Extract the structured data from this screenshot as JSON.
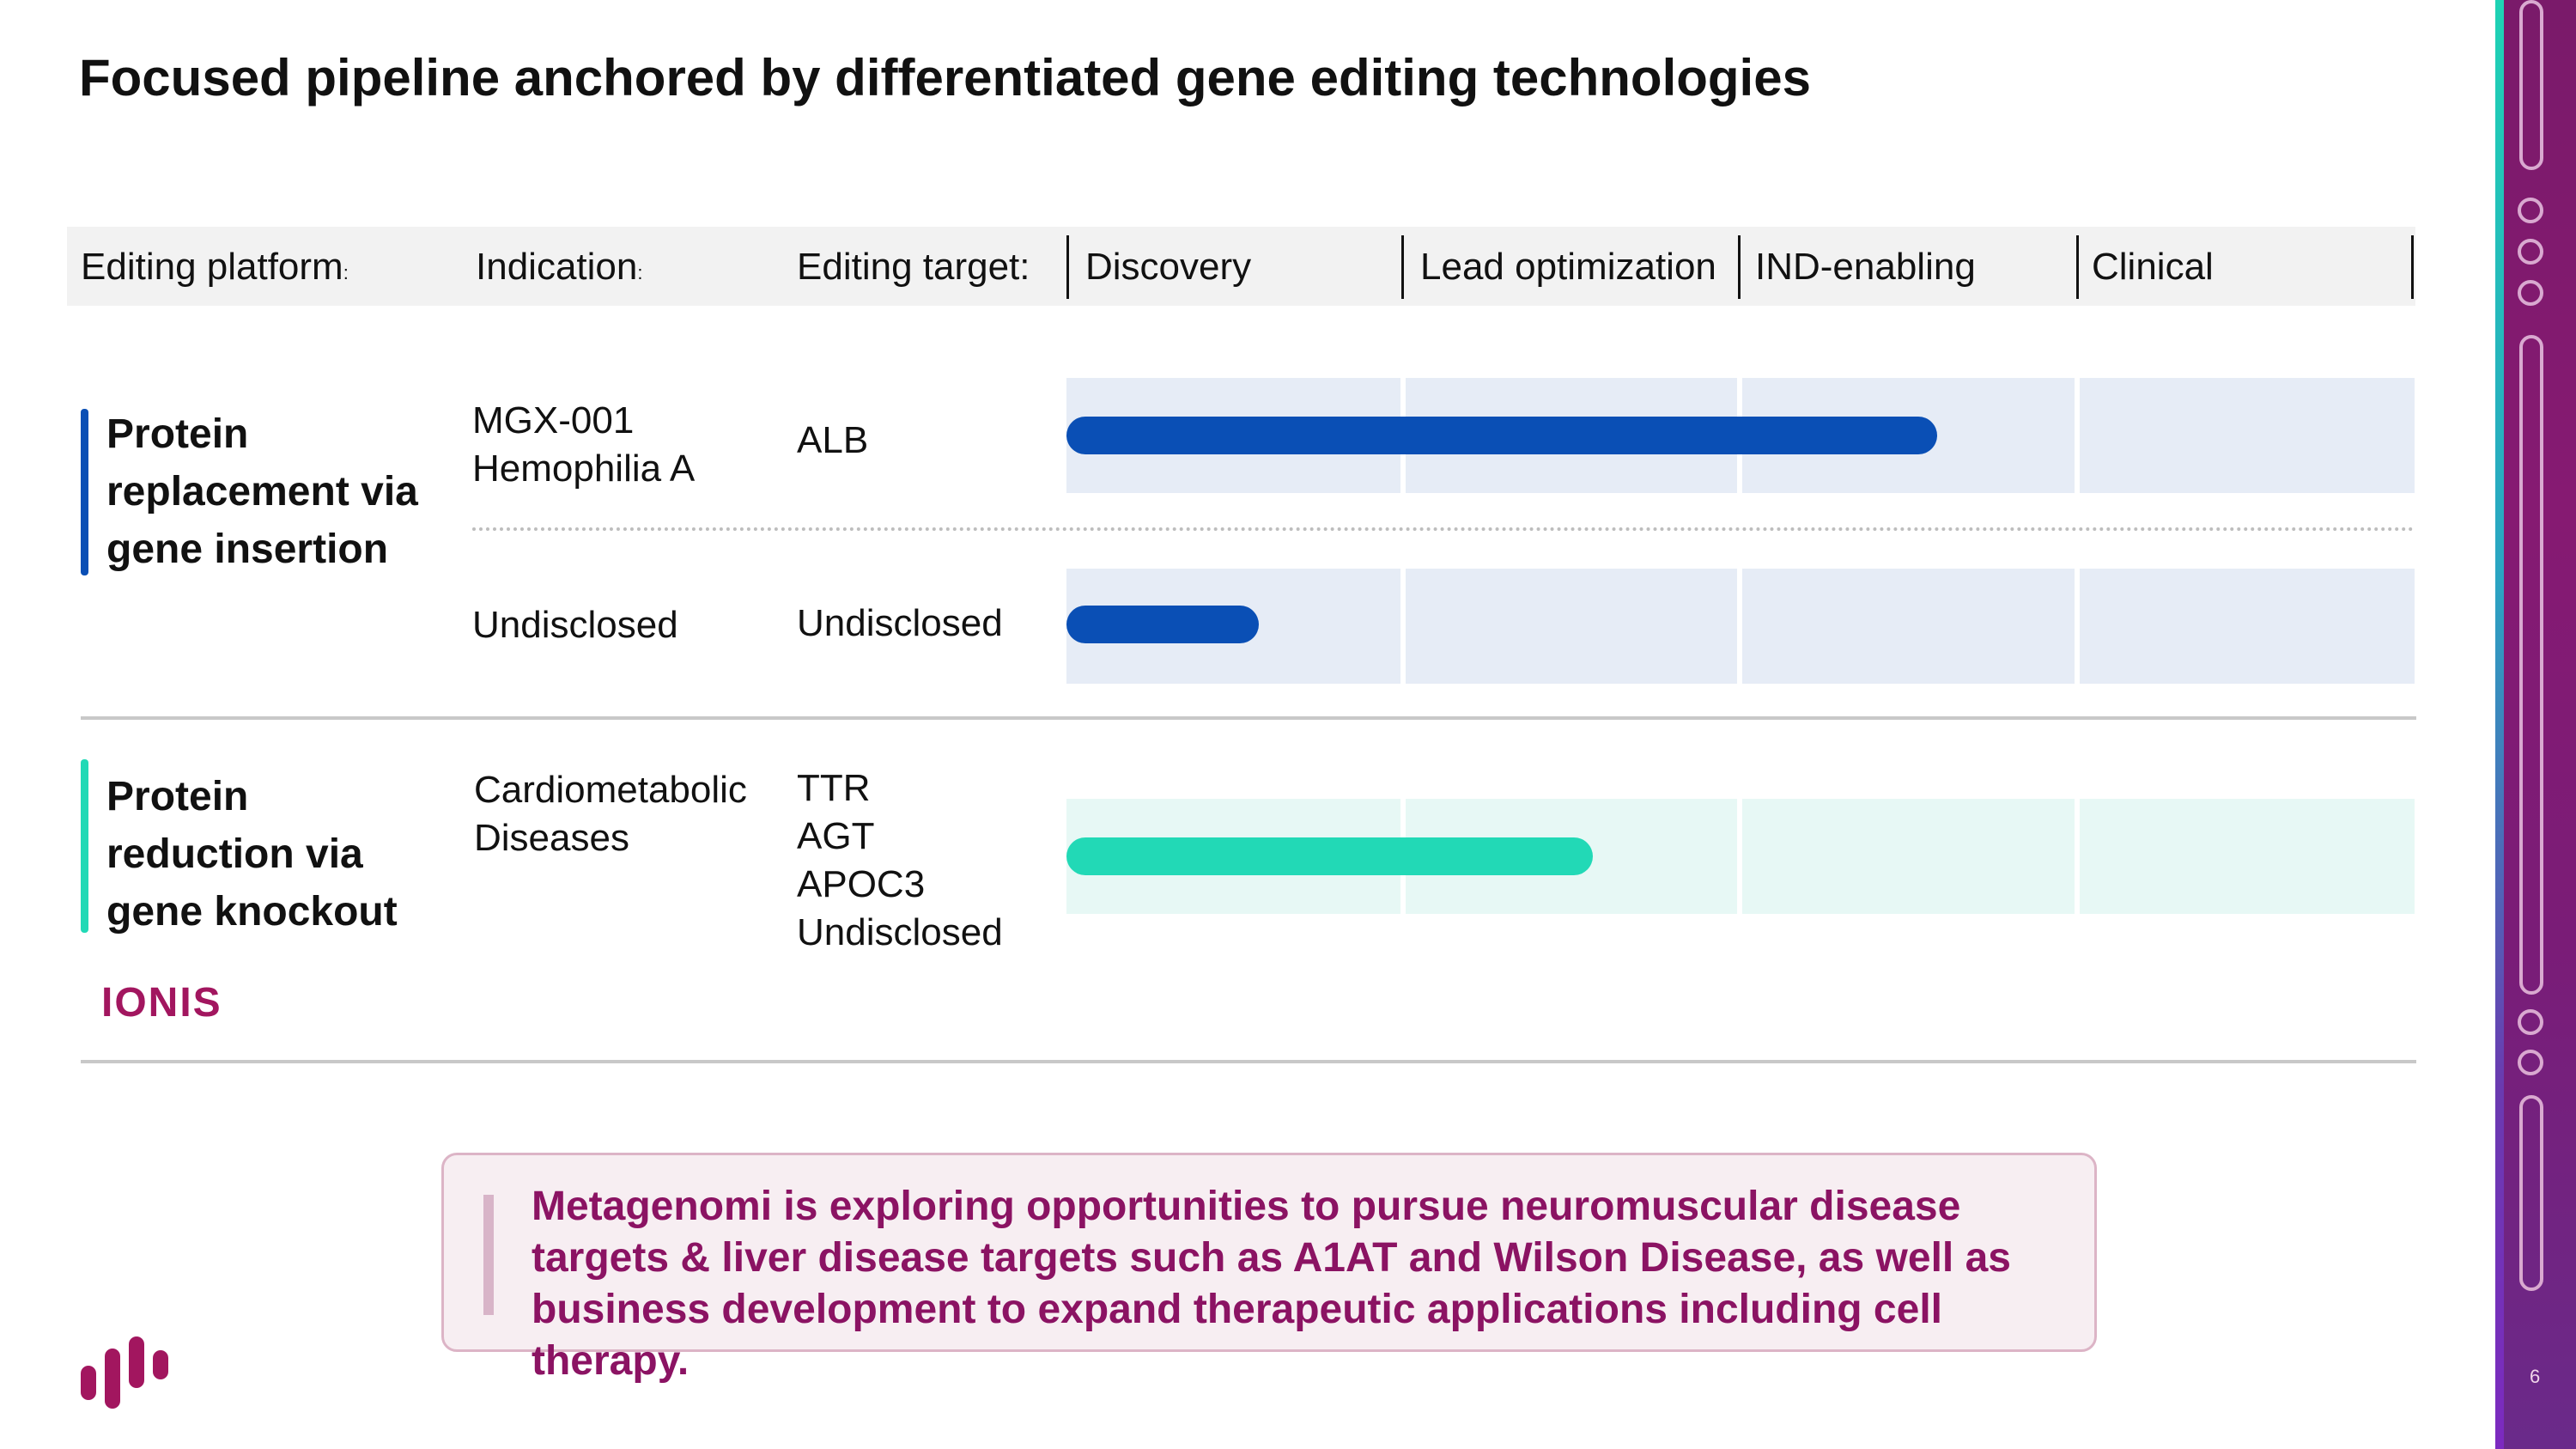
{
  "title": "Focused pipeline anchored by differentiated gene editing technologies",
  "header": {
    "editing_platform": "Editing platform",
    "indication": "Indication",
    "editing_target": "Editing target:",
    "colon": ":",
    "stages": [
      "Discovery",
      "Lead optimization",
      "IND-enabling",
      "Clinical"
    ]
  },
  "groups": [
    {
      "label_lines": [
        "Protein",
        "replacement via",
        "gene insertion"
      ],
      "color": "#0a4fb5",
      "rows": [
        {
          "indication": [
            "MGX-001",
            "Hemophilia A"
          ],
          "target": [
            "ALB"
          ],
          "progress_stage_fraction": 2.58
        },
        {
          "indication": [
            "Undisclosed"
          ],
          "target": [
            "Undisclosed"
          ],
          "progress_stage_fraction": 0.57
        }
      ]
    },
    {
      "label_lines": [
        "Protein",
        "reduction via",
        "gene knockout"
      ],
      "color": "#22d9b6",
      "rows": [
        {
          "indication": [
            "Cardiometabolic",
            "Diseases"
          ],
          "target": [
            "TTR",
            "AGT",
            "APOC3",
            "Undisclosed"
          ],
          "progress_stage_fraction": 1.56
        }
      ]
    }
  ],
  "partner_logo": "IONIS",
  "callout": "Metagenomi is exploring opportunities to pursue neuromuscular disease targets & liver disease targets such as A1AT and Wilson Disease, as well as business development to expand therapeutic applications including cell therapy.",
  "page_number": "6",
  "colors": {
    "insertion_track": "#e6ecf6",
    "knockout_track": "#e7f8f5",
    "callout_text": "#8b1363",
    "brand": "#a2165f"
  }
}
